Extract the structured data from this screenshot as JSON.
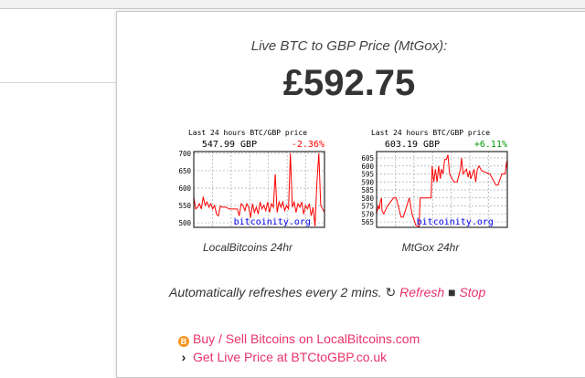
{
  "popup": {
    "title": "Live BTC to GBP Price (MtGox):",
    "price": "£592.75"
  },
  "charts": [
    {
      "id": "localbitcoins",
      "caption": "LocalBitcoins 24hr",
      "header": "Last 24 hours BTC/GBP price",
      "current": "547.99 GBP",
      "change": "-2.36%",
      "change_color": "#ff0000",
      "watermark": "bitcoinity.org",
      "yticks": [
        700,
        650,
        600,
        550,
        500
      ],
      "ylim": [
        487,
        705
      ],
      "line_color": "#ff0000",
      "values": [
        575,
        540,
        545,
        555,
        540,
        575,
        550,
        560,
        545,
        555,
        540,
        550,
        525,
        520,
        548,
        545,
        545,
        545,
        542,
        540,
        540,
        540,
        540,
        540,
        520,
        555,
        550,
        535,
        555,
        545,
        515,
        555,
        530,
        545,
        525,
        560,
        540,
        550,
        535,
        560,
        530,
        555,
        545,
        640,
        530,
        560,
        545,
        560,
        535,
        550,
        540,
        700,
        545,
        560,
        530,
        555,
        545,
        560,
        525,
        550,
        540,
        555,
        520,
        545,
        490,
        615,
        700,
        550,
        540,
        530
      ]
    },
    {
      "id": "mtgox",
      "caption": "MtGox 24hr",
      "header": "Last 24 hours BTC/GBP price",
      "current": "603.19 GBP",
      "change": "+6.11%",
      "change_color": "#009900",
      "watermark": "bitcoinity.org",
      "yticks": [
        605,
        600,
        595,
        590,
        585,
        580,
        575,
        570,
        565
      ],
      "ylim": [
        561.6,
        609
      ],
      "line_color": "#ff0000",
      "points": [
        [
          0,
          570
        ],
        [
          0.3,
          575
        ],
        [
          0.5,
          573
        ],
        [
          0.7,
          578
        ],
        [
          0.9,
          580
        ],
        [
          1.0,
          572
        ],
        [
          1.3,
          570
        ],
        [
          2.0,
          575
        ],
        [
          3.1,
          580
        ],
        [
          3.6,
          580
        ],
        [
          4.5,
          568
        ],
        [
          4.9,
          568
        ],
        [
          6.0,
          580
        ],
        [
          6.5,
          570
        ],
        [
          7.2,
          563
        ],
        [
          7.8,
          562
        ],
        [
          8.0,
          580
        ],
        [
          10.0,
          580
        ],
        [
          10.2,
          600
        ],
        [
          10.5,
          590
        ],
        [
          10.8,
          598
        ],
        [
          11.1,
          590
        ],
        [
          11.4,
          600
        ],
        [
          11.7,
          592
        ],
        [
          11.9,
          598
        ],
        [
          12.2,
          595
        ],
        [
          12.5,
          604
        ],
        [
          12.8,
          604
        ],
        [
          13.1,
          607
        ],
        [
          13.4,
          595
        ],
        [
          14.2,
          590
        ],
        [
          14.8,
          590
        ],
        [
          15.4,
          598
        ],
        [
          15.6,
          605
        ],
        [
          15.9,
          595
        ],
        [
          16.5,
          598
        ],
        [
          16.8,
          593
        ],
        [
          17.1,
          597
        ],
        [
          17.3,
          592
        ],
        [
          17.9,
          598
        ],
        [
          18.2,
          590
        ],
        [
          18.5,
          598
        ],
        [
          18.8,
          600
        ],
        [
          19.3,
          597
        ],
        [
          20.8,
          595
        ],
        [
          21.9,
          588
        ],
        [
          22.3,
          588
        ],
        [
          23.0,
          595
        ],
        [
          23.6,
          595
        ],
        [
          23.9,
          603
        ],
        [
          24,
          598
        ]
      ]
    }
  ],
  "refresh": {
    "text": "Automatically refreshes every 2 mins.",
    "refresh_label": "Refresh",
    "stop_label": "Stop"
  },
  "links": [
    {
      "icon": "bitcoin-icon",
      "label": "Buy / Sell Bitcoins on LocalBitcoins.com"
    },
    {
      "icon": "chevron-right-icon",
      "label": "Get Live Price at BTCtoGBP.co.uk"
    }
  ],
  "colors": {
    "link": "#e8336b",
    "accent_bitcoin": "#f7931a"
  }
}
